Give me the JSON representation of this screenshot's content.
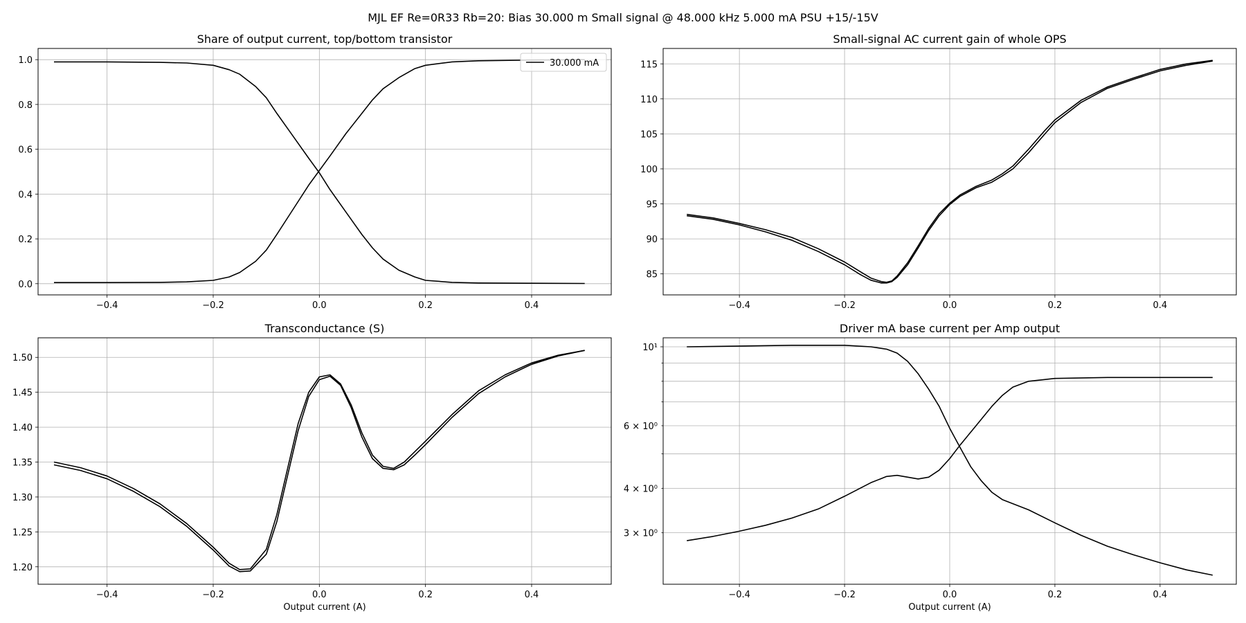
{
  "figure": {
    "suptitle": "MJL EF Re=0R33 Rb=20: Bias 30.000 m Small signal @ 48.000 kHz 5.000 mA PSU +15/-15V"
  },
  "chart_data": [
    {
      "type": "line",
      "title": "Share of output current, top/bottom transistor",
      "xlabel": "",
      "ylabel": "",
      "xlim": [
        -0.53,
        0.55
      ],
      "ylim": [
        -0.05,
        1.05
      ],
      "xticks": [
        -0.4,
        -0.2,
        0.0,
        0.2,
        0.4
      ],
      "xtick_labels": [
        "−0.4",
        "−0.2",
        "0.0",
        "0.2",
        "0.4"
      ],
      "yticks": [
        0.0,
        0.2,
        0.4,
        0.6,
        0.8,
        1.0
      ],
      "ytick_labels": [
        "0.0",
        "0.2",
        "0.4",
        "0.6",
        "0.8",
        "1.0"
      ],
      "grid": true,
      "legend": {
        "position": "top-right",
        "entries": [
          "30.000 mA"
        ]
      },
      "series": [
        {
          "name": "30.000 mA",
          "color": "#000000",
          "x": [
            -0.5,
            -0.4,
            -0.3,
            -0.25,
            -0.2,
            -0.17,
            -0.15,
            -0.12,
            -0.1,
            -0.08,
            -0.05,
            -0.02,
            0.0,
            0.02,
            0.05,
            0.08,
            0.1,
            0.12,
            0.15,
            0.18,
            0.2,
            0.25,
            0.3,
            0.4,
            0.5
          ],
          "y": [
            0.99,
            0.99,
            0.988,
            0.985,
            0.975,
            0.955,
            0.935,
            0.88,
            0.83,
            0.76,
            0.66,
            0.56,
            0.495,
            0.42,
            0.32,
            0.22,
            0.16,
            0.11,
            0.06,
            0.03,
            0.015,
            0.006,
            0.003,
            0.002,
            0.001
          ]
        },
        {
          "color": "#000000",
          "x": [
            -0.5,
            -0.4,
            -0.3,
            -0.25,
            -0.2,
            -0.17,
            -0.15,
            -0.12,
            -0.1,
            -0.08,
            -0.05,
            -0.02,
            0.0,
            0.02,
            0.05,
            0.08,
            0.1,
            0.12,
            0.15,
            0.18,
            0.2,
            0.25,
            0.3,
            0.4,
            0.5
          ],
          "y": [
            0.005,
            0.005,
            0.006,
            0.008,
            0.015,
            0.03,
            0.05,
            0.1,
            0.15,
            0.22,
            0.33,
            0.44,
            0.505,
            0.57,
            0.67,
            0.76,
            0.82,
            0.87,
            0.92,
            0.96,
            0.975,
            0.99,
            0.995,
            0.998,
            1.0
          ]
        }
      ]
    },
    {
      "type": "line",
      "title": "Small-signal AC current gain of whole OPS",
      "xlabel": "",
      "ylabel": "",
      "xlim": [
        -0.545,
        0.545
      ],
      "ylim": [
        82,
        117.2
      ],
      "xticks": [
        -0.4,
        -0.2,
        0.0,
        0.2,
        0.4
      ],
      "xtick_labels": [
        "−0.4",
        "−0.2",
        "0.0",
        "0.2",
        "0.4"
      ],
      "yticks": [
        85,
        90,
        95,
        100,
        105,
        110,
        115
      ],
      "ytick_labels": [
        "85",
        "90",
        "95",
        "100",
        "105",
        "110",
        "115"
      ],
      "grid": true,
      "series": [
        {
          "color": "#000000",
          "x": [
            -0.5,
            -0.45,
            -0.4,
            -0.35,
            -0.3,
            -0.25,
            -0.2,
            -0.17,
            -0.15,
            -0.13,
            -0.12,
            -0.11,
            -0.1,
            -0.08,
            -0.06,
            -0.04,
            -0.02,
            0.0,
            0.02,
            0.05,
            0.08,
            0.1,
            0.12,
            0.15,
            0.18,
            0.2,
            0.25,
            0.3,
            0.35,
            0.4,
            0.45,
            0.5
          ],
          "y": [
            93.5,
            93.0,
            92.2,
            91.3,
            90.2,
            88.6,
            86.7,
            85.3,
            84.4,
            83.9,
            83.8,
            84.0,
            84.7,
            86.6,
            89.0,
            91.5,
            93.6,
            95.1,
            96.3,
            97.5,
            98.4,
            99.3,
            100.4,
            102.8,
            105.4,
            107.0,
            109.8,
            111.7,
            113.0,
            114.2,
            115.0,
            115.5
          ]
        },
        {
          "color": "#000000",
          "x": [
            -0.5,
            -0.45,
            -0.4,
            -0.35,
            -0.3,
            -0.25,
            -0.2,
            -0.17,
            -0.15,
            -0.13,
            -0.12,
            -0.11,
            -0.1,
            -0.08,
            -0.06,
            -0.04,
            -0.02,
            0.0,
            0.02,
            0.05,
            0.08,
            0.1,
            0.12,
            0.15,
            0.18,
            0.2,
            0.25,
            0.3,
            0.35,
            0.4,
            0.45,
            0.5
          ],
          "y": [
            93.3,
            92.8,
            92.0,
            91.0,
            89.8,
            88.2,
            86.3,
            84.9,
            84.1,
            83.7,
            83.7,
            83.9,
            84.5,
            86.3,
            88.7,
            91.2,
            93.3,
            94.9,
            96.1,
            97.3,
            98.1,
            99.0,
            100.0,
            102.3,
            104.9,
            106.6,
            109.5,
            111.5,
            112.8,
            114.0,
            114.8,
            115.4
          ]
        }
      ]
    },
    {
      "type": "line",
      "title": "Transconductance (S)",
      "xlabel": "Output current (A)",
      "ylabel": "",
      "xlim": [
        -0.53,
        0.55
      ],
      "ylim": [
        1.175,
        1.528
      ],
      "xticks": [
        -0.4,
        -0.2,
        0.0,
        0.2,
        0.4
      ],
      "xtick_labels": [
        "−0.4",
        "−0.2",
        "0.0",
        "0.2",
        "0.4"
      ],
      "yticks": [
        1.2,
        1.25,
        1.3,
        1.35,
        1.4,
        1.45,
        1.5
      ],
      "ytick_labels": [
        "1.20",
        "1.25",
        "1.30",
        "1.35",
        "1.40",
        "1.45",
        "1.50"
      ],
      "grid": true,
      "series": [
        {
          "color": "#000000",
          "x": [
            -0.5,
            -0.45,
            -0.4,
            -0.35,
            -0.3,
            -0.25,
            -0.2,
            -0.17,
            -0.15,
            -0.13,
            -0.1,
            -0.08,
            -0.06,
            -0.04,
            -0.02,
            0.0,
            0.02,
            0.04,
            0.06,
            0.08,
            0.1,
            0.12,
            0.14,
            0.16,
            0.18,
            0.2,
            0.25,
            0.3,
            0.35,
            0.4,
            0.45,
            0.5
          ],
          "y": [
            1.35,
            1.342,
            1.33,
            1.312,
            1.29,
            1.262,
            1.228,
            1.205,
            1.196,
            1.197,
            1.225,
            1.275,
            1.34,
            1.405,
            1.45,
            1.472,
            1.475,
            1.462,
            1.432,
            1.392,
            1.36,
            1.344,
            1.341,
            1.35,
            1.365,
            1.38,
            1.418,
            1.452,
            1.475,
            1.492,
            1.503,
            1.51
          ]
        },
        {
          "color": "#000000",
          "x": [
            -0.5,
            -0.45,
            -0.4,
            -0.35,
            -0.3,
            -0.25,
            -0.2,
            -0.17,
            -0.15,
            -0.13,
            -0.1,
            -0.08,
            -0.06,
            -0.04,
            -0.02,
            0.0,
            0.02,
            0.04,
            0.06,
            0.08,
            0.1,
            0.12,
            0.14,
            0.16,
            0.18,
            0.2,
            0.25,
            0.3,
            0.35,
            0.4,
            0.45,
            0.5
          ],
          "y": [
            1.346,
            1.338,
            1.326,
            1.308,
            1.286,
            1.258,
            1.224,
            1.201,
            1.193,
            1.194,
            1.218,
            1.265,
            1.33,
            1.395,
            1.444,
            1.468,
            1.473,
            1.46,
            1.428,
            1.386,
            1.355,
            1.341,
            1.339,
            1.346,
            1.36,
            1.375,
            1.414,
            1.448,
            1.472,
            1.49,
            1.502,
            1.51
          ]
        }
      ]
    },
    {
      "type": "line",
      "title": "Driver mA base current per Amp output",
      "xlabel": "Output current (A)",
      "ylabel": "",
      "xscale": "linear",
      "yscale": "log",
      "xlim": [
        -0.545,
        0.545
      ],
      "ylim": [
        2.15,
        10.6
      ],
      "xticks": [
        -0.4,
        -0.2,
        0.0,
        0.2,
        0.4
      ],
      "xtick_labels": [
        "−0.4",
        "−0.2",
        "0.0",
        "0.2",
        "0.4"
      ],
      "yticks_major": [
        10
      ],
      "ytick_labels_major": [
        "10¹"
      ],
      "yticks_minor_labeled": [
        3,
        4,
        6
      ],
      "ytick_labels_minor": [
        "3 × 10⁰",
        "4 × 10⁰",
        "6 × 10⁰"
      ],
      "yticks_minor": [
        3,
        4,
        5,
        6,
        7,
        8,
        9
      ],
      "grid": true,
      "series": [
        {
          "color": "#000000",
          "x": [
            -0.5,
            -0.4,
            -0.3,
            -0.2,
            -0.15,
            -0.12,
            -0.1,
            -0.08,
            -0.06,
            -0.04,
            -0.02,
            0.0,
            0.02,
            0.04,
            0.06,
            0.08,
            0.1,
            0.15,
            0.2,
            0.25,
            0.3,
            0.35,
            0.4,
            0.45,
            0.5
          ],
          "y": [
            10.0,
            10.05,
            10.1,
            10.1,
            10.0,
            9.85,
            9.6,
            9.1,
            8.4,
            7.6,
            6.8,
            5.9,
            5.2,
            4.6,
            4.2,
            3.9,
            3.72,
            3.48,
            3.2,
            2.95,
            2.75,
            2.6,
            2.47,
            2.36,
            2.28
          ]
        },
        {
          "color": "#000000",
          "x": [
            -0.5,
            -0.45,
            -0.4,
            -0.35,
            -0.3,
            -0.25,
            -0.2,
            -0.15,
            -0.12,
            -0.1,
            -0.08,
            -0.06,
            -0.04,
            -0.02,
            0.0,
            0.02,
            0.05,
            0.08,
            0.1,
            0.12,
            0.15,
            0.2,
            0.3,
            0.4,
            0.5
          ],
          "y": [
            2.85,
            2.93,
            3.03,
            3.15,
            3.3,
            3.5,
            3.8,
            4.15,
            4.32,
            4.35,
            4.3,
            4.25,
            4.3,
            4.5,
            4.85,
            5.3,
            6.0,
            6.8,
            7.3,
            7.7,
            8.0,
            8.15,
            8.2,
            8.2,
            8.2
          ]
        }
      ]
    }
  ]
}
